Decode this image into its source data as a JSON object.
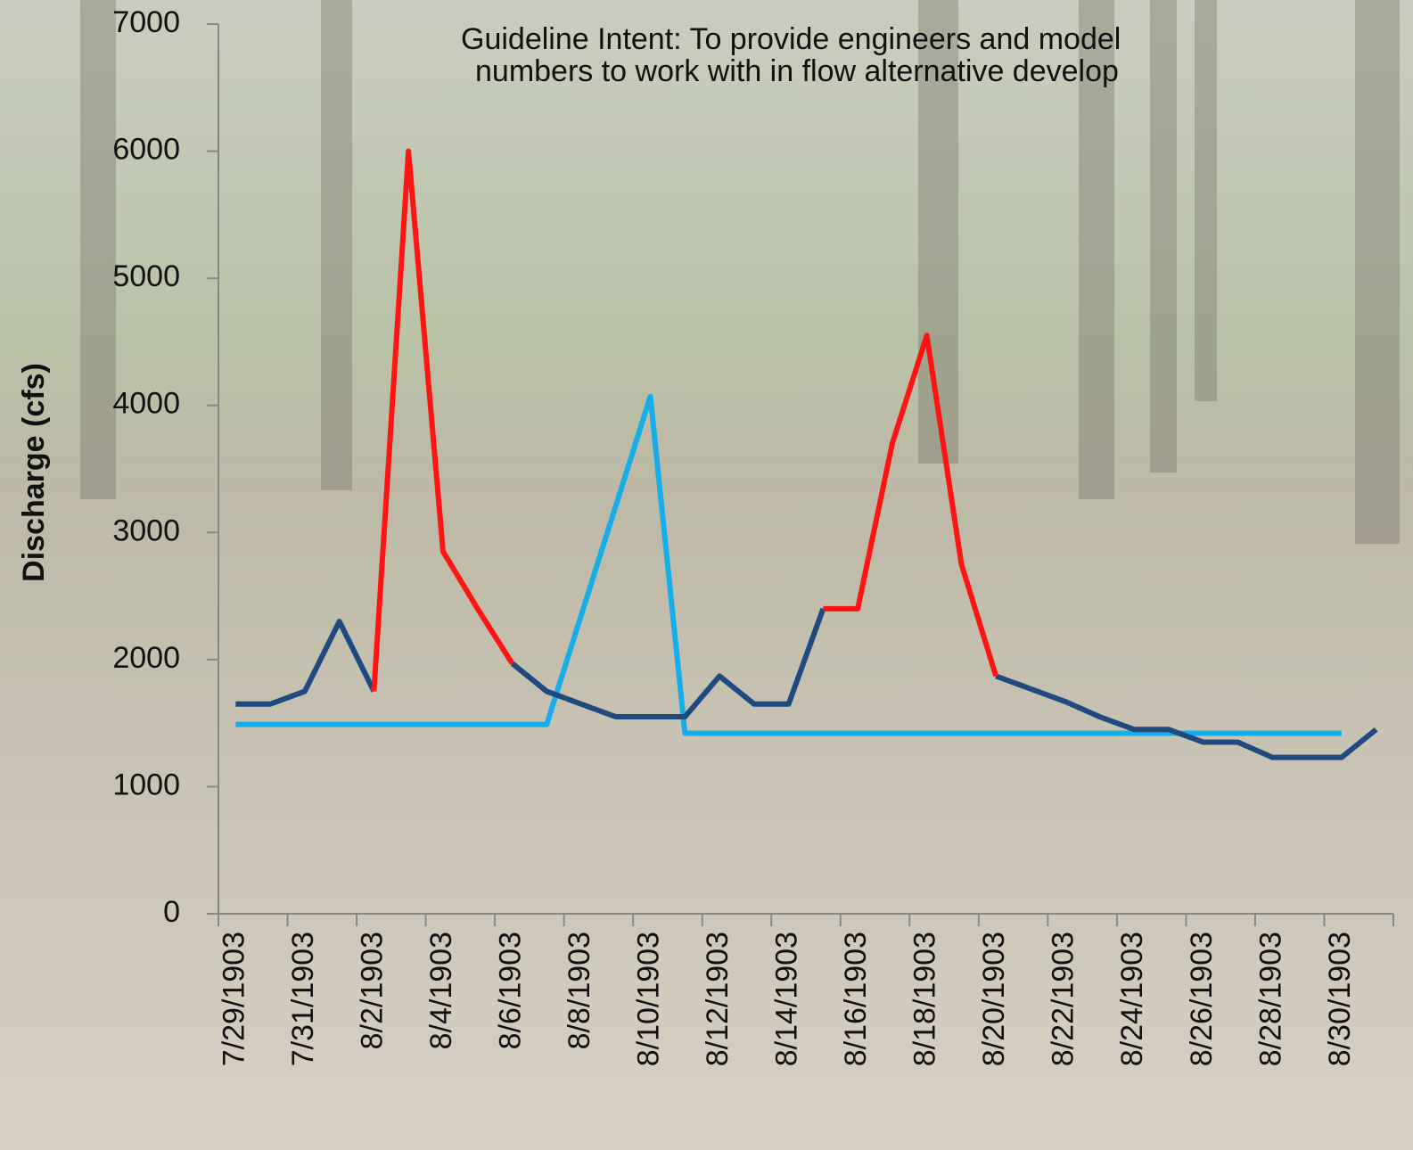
{
  "chart_data": {
    "type": "line",
    "title": [
      "Guideline Intent: To provide engineers and model",
      "numbers to work with in flow alternative develop"
    ],
    "y_label": "Discharge (cfs)",
    "categories": [
      "7/29/1903",
      null,
      "7/31/1903",
      null,
      "8/2/1903",
      null,
      "8/4/1903",
      null,
      "8/6/1903",
      null,
      "8/8/1903",
      null,
      "8/10/1903",
      null,
      "8/12/1903",
      null,
      "8/14/1903",
      null,
      "8/16/1903",
      null,
      "8/18/1903",
      null,
      "8/20/1903",
      null,
      "8/22/1903",
      null,
      "8/24/1903",
      null,
      "8/26/1903",
      null,
      "8/28/1903",
      null,
      "8/30/1903",
      null
    ],
    "series": [
      {
        "color": "#16aee9",
        "values": [
          1490,
          1490,
          1490,
          1490,
          1490,
          1490,
          1490,
          1490,
          1490,
          1490,
          2350,
          3210,
          4070,
          1420,
          1420,
          1420,
          1420,
          1420,
          1420,
          1420,
          1420,
          1420,
          1420,
          1420,
          1420,
          1420,
          1420,
          1420,
          1420,
          1420,
          1420,
          1420,
          1420,
          null
        ]
      },
      {
        "color": "#1f4a80",
        "values": [
          1650,
          1650,
          1750,
          2300,
          1750,
          null,
          null,
          null,
          1970,
          1750,
          1650,
          1550,
          1550,
          1550,
          1870,
          1650,
          1650,
          2400,
          null,
          null,
          null,
          null,
          1870,
          1770,
          1670,
          1550,
          1450,
          1450,
          1350,
          1350,
          1230,
          1230,
          1230,
          1450
        ]
      },
      {
        "color": "#ff1414",
        "values": [
          null,
          null,
          null,
          null,
          1750,
          6000,
          2850,
          2400,
          1970,
          null,
          null,
          null,
          null,
          null,
          null,
          null,
          null,
          2400,
          2400,
          3700,
          4550,
          2750,
          1870,
          null,
          null,
          null,
          null,
          null,
          null,
          null,
          null,
          null,
          null,
          null
        ]
      }
    ],
    "ylim": [
      0,
      7000
    ],
    "yticks": [
      0,
      1000,
      2000,
      3000,
      4000,
      5000,
      6000,
      7000
    ]
  }
}
